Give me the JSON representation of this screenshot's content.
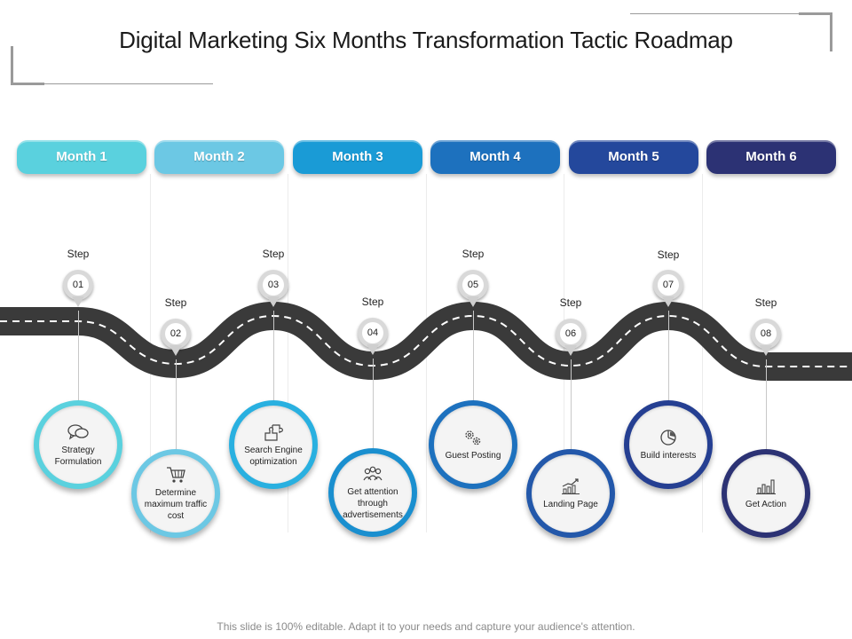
{
  "title": "Digital Marketing Six Months Transformation Tactic Roadmap",
  "footer": "This slide is 100% editable. Adapt it to your needs and capture your audience's attention.",
  "months": [
    {
      "label": "Month 1",
      "color": "#5ad1de"
    },
    {
      "label": "Month 2",
      "color": "#6cc8e4"
    },
    {
      "label": "Month 3",
      "color": "#1a9bd6"
    },
    {
      "label": "Month 4",
      "color": "#1d71be"
    },
    {
      "label": "Month 5",
      "color": "#24489c"
    },
    {
      "label": "Month 6",
      "color": "#2c3274"
    }
  ],
  "steps": [
    {
      "label": "Step",
      "number": "01",
      "text": "Strategy Formulation",
      "icon": "chat-bubbles-icon",
      "color": "#5ad1de"
    },
    {
      "label": "Step",
      "number": "02",
      "text": "Determine maximum traffic cost",
      "icon": "shopping-cart-icon",
      "color": "#6cc8e4"
    },
    {
      "label": "Step",
      "number": "03",
      "text": "Search Engine optimization",
      "icon": "puzzle-icon",
      "color": "#29b0e0"
    },
    {
      "label": "Step",
      "number": "04",
      "text": "Get attention through advertisements",
      "icon": "people-group-icon",
      "color": "#1a8fcf"
    },
    {
      "label": "Step",
      "number": "05",
      "text": "Guest Posting",
      "icon": "gears-icon",
      "color": "#1d71be"
    },
    {
      "label": "Step",
      "number": "06",
      "text": "Landing Page",
      "icon": "growth-chart-icon",
      "color": "#2358aa"
    },
    {
      "label": "Step",
      "number": "07",
      "text": "Build interests",
      "icon": "pie-chart-icon",
      "color": "#253f92"
    },
    {
      "label": "Step",
      "number": "08",
      "text": "Get Action",
      "icon": "bar-chart-icon",
      "color": "#2c3274"
    }
  ]
}
